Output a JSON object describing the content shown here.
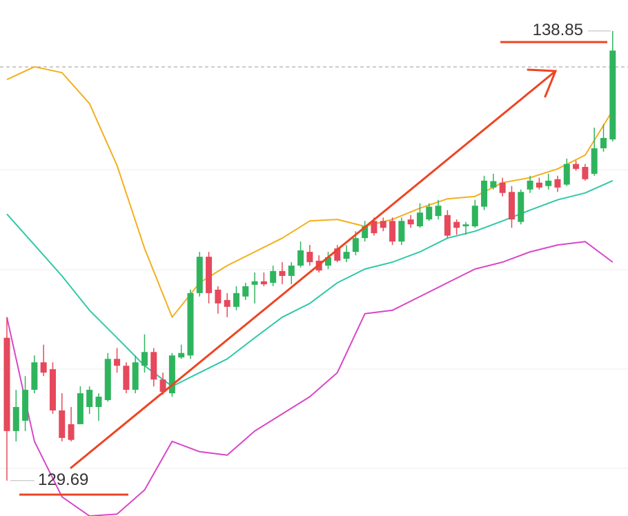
{
  "chart_data": {
    "type": "candlestick",
    "ylim": [
      128.97,
      139.48
    ],
    "xlim": [
      -0.75,
      67.67
    ],
    "up_color": "#2fb45e",
    "down_color": "#e6485c",
    "open": [
      132.6,
      130.7,
      130.91,
      131.54,
      132.1,
      131.96,
      131.12,
      130.84,
      130.84,
      131.19,
      131.19,
      131.33,
      132.17,
      132.03,
      131.54,
      132.03,
      132.31,
      131.75,
      131.47,
      132.2,
      132.24,
      133.51,
      134.25,
      133.58,
      133.37,
      133.23,
      133.44,
      133.68,
      133.75,
      133.72,
      133.96,
      133.86,
      134.07,
      134.35,
      134.17,
      134.07,
      134.42,
      134.21,
      134.35,
      134.63,
      134.98,
      134.98,
      134.98,
      134.56,
      135.01,
      134.87,
      135.01,
      135.08,
      135.1,
      134.96,
      134.87,
      134.87,
      135.27,
      135.66,
      135.76,
      135.57,
      134.96,
      135.62,
      135.76,
      135.69,
      135.83,
      135.72,
      136.14,
      136.08,
      135.94,
      136.46,
      136.64
    ],
    "high": [
      133.02,
      131.54,
      131.82,
      132.24,
      132.46,
      132.1,
      131.47,
      131.19,
      131.61,
      131.61,
      131.47,
      132.29,
      132.39,
      132.1,
      132.24,
      132.67,
      132.39,
      131.89,
      132.29,
      132.46,
      133.58,
      134.35,
      134.35,
      133.65,
      133.51,
      133.65,
      133.72,
      133.93,
      133.93,
      134.07,
      134.14,
      134.14,
      134.56,
      134.49,
      134.28,
      134.35,
      134.49,
      134.49,
      134.77,
      134.98,
      135.05,
      135.05,
      135.05,
      135.05,
      135.1,
      135.34,
      135.34,
      135.41,
      135.2,
      135.01,
      134.96,
      135.41,
      135.9,
      135.94,
      135.86,
      135.69,
      135.62,
      135.9,
      135.86,
      135.94,
      135.9,
      136.25,
      136.21,
      136.14,
      136.88,
      136.95,
      138.85
    ],
    "low": [
      129.69,
      130.49,
      130.7,
      131.47,
      131.82,
      131.05,
      130.49,
      130.49,
      130.84,
      131.05,
      130.91,
      131.3,
      131.89,
      131.47,
      131.47,
      131.89,
      131.61,
      131.44,
      131.4,
      132.17,
      132.17,
      133.44,
      133.3,
      133.09,
      133.02,
      133.16,
      133.37,
      133.3,
      133.65,
      133.65,
      133.69,
      133.69,
      134.03,
      134.07,
      133.93,
      134.0,
      134.14,
      134.14,
      134.28,
      134.56,
      134.68,
      134.77,
      134.49,
      134.49,
      134.84,
      134.84,
      134.98,
      135.01,
      134.63,
      134.7,
      134.7,
      134.84,
      135.2,
      135.62,
      135.48,
      134.84,
      134.91,
      135.55,
      135.62,
      135.62,
      135.57,
      135.69,
      136.0,
      135.8,
      135.9,
      136.39,
      136.6
    ],
    "close": [
      130.7,
      131.19,
      131.54,
      132.1,
      131.89,
      131.12,
      130.56,
      130.52,
      131.47,
      131.54,
      131.4,
      132.17,
      132.03,
      131.54,
      132.1,
      132.31,
      131.75,
      131.5,
      132.24,
      132.29,
      133.51,
      134.25,
      133.51,
      133.3,
      133.23,
      133.51,
      133.65,
      133.75,
      133.69,
      133.96,
      133.86,
      134.07,
      134.38,
      134.14,
      133.97,
      134.24,
      134.17,
      134.35,
      134.63,
      134.87,
      134.73,
      134.84,
      134.56,
      134.98,
      134.91,
      135.15,
      135.27,
      135.29,
      134.68,
      134.84,
      134.91,
      135.29,
      135.8,
      135.79,
      135.55,
      135.01,
      135.57,
      135.8,
      135.66,
      135.8,
      135.66,
      136.14,
      136.04,
      135.83,
      136.46,
      136.67,
      138.45
    ],
    "band_x": [
      0,
      3,
      6,
      9,
      12,
      15,
      18,
      21,
      24,
      27,
      30,
      33,
      36,
      39,
      42,
      45,
      48,
      51,
      54,
      57,
      60,
      63,
      66
    ],
    "series": [
      {
        "name": "upper",
        "color": "#f2b01e",
        "values": [
          137.86,
          138.12,
          138.0,
          137.37,
          136.11,
          134.42,
          133.02,
          133.72,
          134.07,
          134.35,
          134.63,
          134.98,
          135.01,
          134.87,
          135.01,
          135.24,
          135.43,
          135.48,
          135.76,
          135.86,
          136.04,
          136.32,
          137.23
        ]
      },
      {
        "name": "middle",
        "color": "#2fc9a6",
        "values": [
          135.12,
          134.49,
          133.86,
          133.16,
          132.6,
          132.03,
          131.61,
          131.89,
          132.17,
          132.6,
          133.02,
          133.3,
          133.72,
          134.0,
          134.14,
          134.35,
          134.63,
          134.77,
          134.98,
          135.2,
          135.41,
          135.55,
          135.8
        ]
      },
      {
        "name": "lower",
        "color": "#d946c7",
        "values": [
          133.02,
          130.49,
          129.36,
          128.97,
          129.01,
          129.5,
          130.49,
          130.28,
          130.21,
          130.7,
          131.05,
          131.4,
          131.89,
          133.09,
          133.16,
          133.44,
          133.72,
          134.0,
          134.14,
          134.35,
          134.49,
          134.56,
          134.14
        ]
      }
    ],
    "annotations": [
      {
        "text": "138.85",
        "value": 138.85
      },
      {
        "text": "129.69",
        "value": 129.69
      }
    ]
  }
}
